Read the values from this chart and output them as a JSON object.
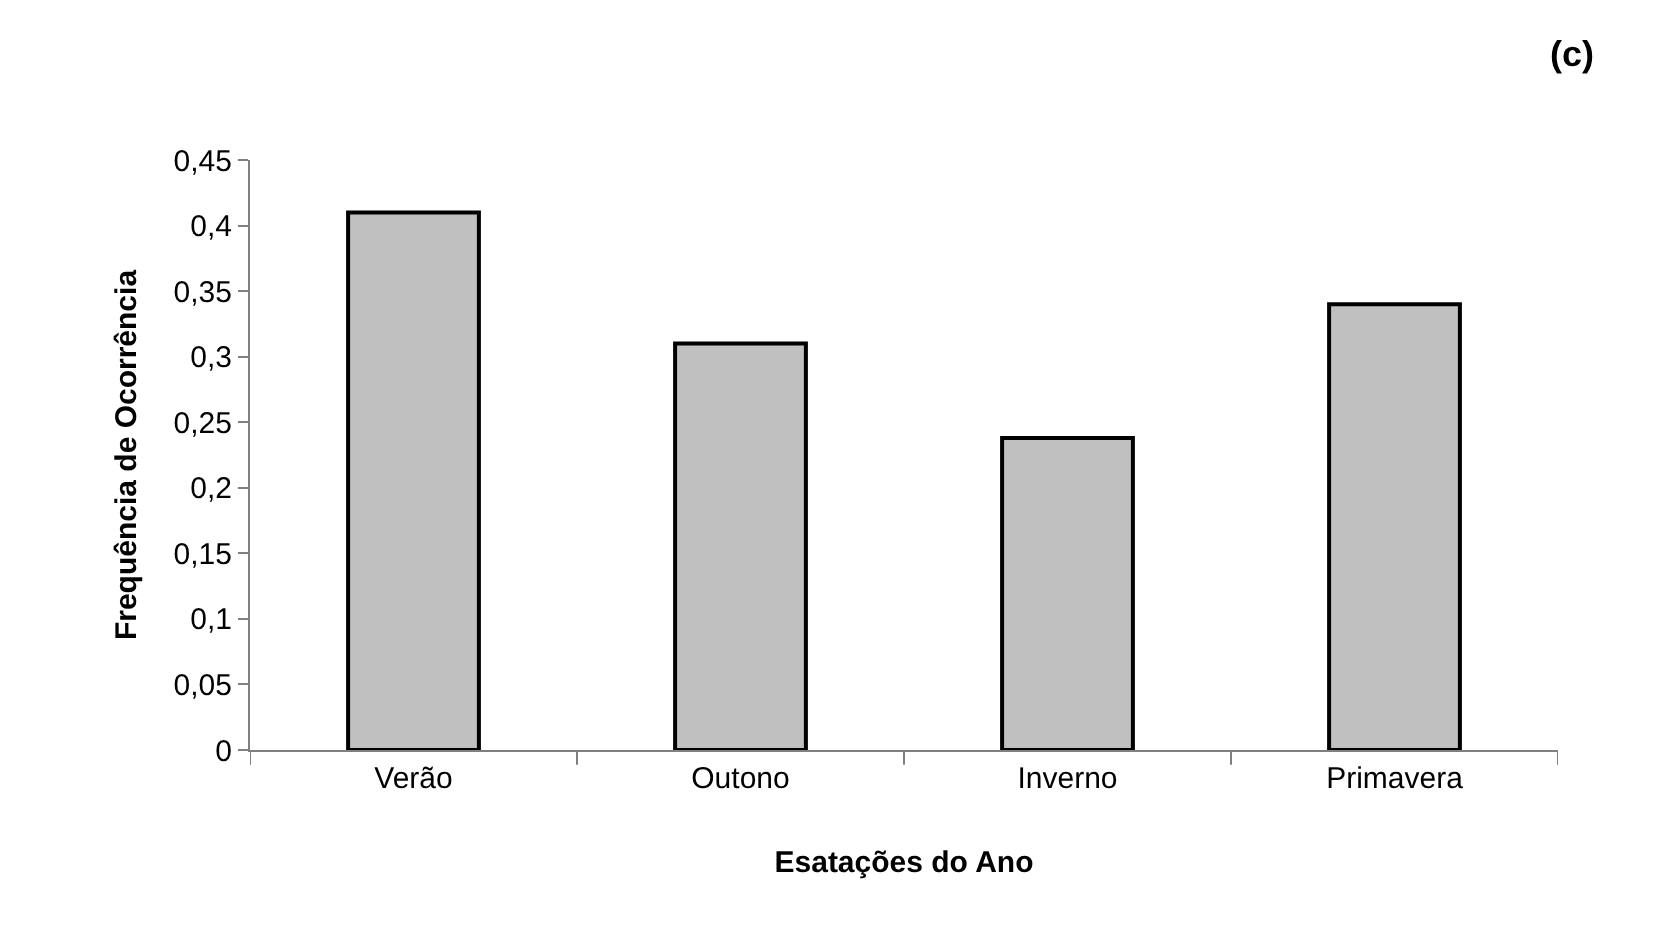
{
  "chart_data": {
    "type": "bar",
    "xlabel": "Esatações do Ano",
    "ylabel": "Frequência de Ocorrência",
    "annotations": [
      "(c)"
    ],
    "categories": [
      "Verão",
      "Outono",
      "Inverno",
      "Primavera"
    ],
    "values": [
      0.41,
      0.31,
      0.238,
      0.34
    ],
    "color": "#c0c0c0",
    "ylim": [
      0,
      0.45
    ],
    "yticks": [
      {
        "value": 0,
        "label": "0"
      },
      {
        "value": 0.05,
        "label": "0,05"
      },
      {
        "value": 0.1,
        "label": "0,1"
      },
      {
        "value": 0.15,
        "label": "0,15"
      },
      {
        "value": 0.2,
        "label": "0,2"
      },
      {
        "value": 0.25,
        "label": "0,25"
      },
      {
        "value": 0.3,
        "label": "0,3"
      },
      {
        "value": 0.35,
        "label": "0,35"
      },
      {
        "value": 0.4,
        "label": "0,4"
      },
      {
        "value": 0.45,
        "label": "0,45"
      }
    ]
  }
}
